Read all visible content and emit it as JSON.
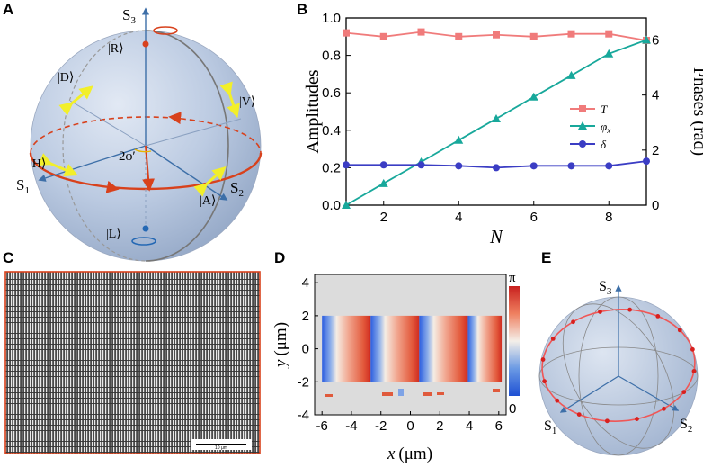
{
  "panels": {
    "a": "A",
    "b": "B",
    "c": "C",
    "d": "D",
    "e": "E"
  },
  "colors": {
    "sphere": "#b3c3de",
    "red_circle": "#d8411c",
    "yellow_arrow": "#f2ef2a",
    "amp_T": "#f07b7b",
    "phi_x": "#18a89b",
    "delta": "#3b3dc4",
    "e_orbit": "#ef5757"
  },
  "sphere_a": {
    "s3": "S",
    "s3_sub": "3",
    "s1": "S",
    "s1_sub": "1",
    "s2": "S",
    "s2_sub": "2",
    "R": "|R⟩",
    "L": "|L⟩",
    "H": "|H⟩",
    "V": "|V⟩",
    "D": "|D⟩",
    "A": "|A⟩",
    "angle": "2ϕ′"
  },
  "chart_data": [
    {
      "type": "line",
      "panel": "B",
      "x": [
        1,
        2,
        3,
        4,
        5,
        6,
        7,
        8,
        9
      ],
      "xlim": [
        1,
        9
      ],
      "xticks": [
        "2",
        "4",
        "6",
        "8"
      ],
      "xlabel": "N",
      "ylabel_left": "Amplitudes",
      "ylim_left": [
        0,
        1.0
      ],
      "yticks_left": [
        "0.0",
        "0.2",
        "0.4",
        "0.6",
        "0.8",
        "1.0"
      ],
      "ylabel_right": "Phases (rad)",
      "ylim_right": [
        0,
        6.8
      ],
      "yticks_right": [
        "0",
        "2",
        "4",
        "6"
      ],
      "legend_position": "right-middle",
      "series": [
        {
          "name": "T",
          "axis": "left",
          "marker": "square",
          "values": [
            0.92,
            0.9,
            0.925,
            0.9,
            0.91,
            0.9,
            0.915,
            0.915,
            0.88
          ]
        },
        {
          "name": "φx",
          "name_main": "φ",
          "name_sub": "x",
          "axis": "right",
          "marker": "triangle",
          "values": [
            0.0,
            0.79,
            1.57,
            2.36,
            3.14,
            3.93,
            4.71,
            5.5,
            6.0
          ]
        },
        {
          "name": "δ",
          "axis": "left",
          "marker": "circle",
          "values": [
            0.215,
            0.215,
            0.215,
            0.21,
            0.2,
            0.21,
            0.21,
            0.21,
            0.235
          ]
        }
      ]
    },
    {
      "type": "heatmap",
      "panel": "D",
      "xlabel": "x (μm)",
      "xlabel_main": "x",
      "xlabel_unit": "(μm)",
      "ylabel": "y (μm)",
      "ylabel_main": "y",
      "ylabel_unit": "(μm)",
      "xlim": [
        -6.5,
        6.5
      ],
      "ylim": [
        -4,
        4.5
      ],
      "xticks": [
        "-6",
        "-4",
        "-2",
        "0",
        "2",
        "4",
        "6"
      ],
      "yticks": [
        "4",
        "2",
        "0",
        "-2",
        "-4"
      ],
      "colorbar_max": "π",
      "colorbar_min": "0",
      "period_um": 3.3
    }
  ],
  "micrograph_c": {
    "scale_label": "10 μm"
  },
  "sphere_e": {
    "s3": "S",
    "s3_sub": "3",
    "s1": "S",
    "s1_sub": "1",
    "s2": "S",
    "s2_sub": "2"
  }
}
